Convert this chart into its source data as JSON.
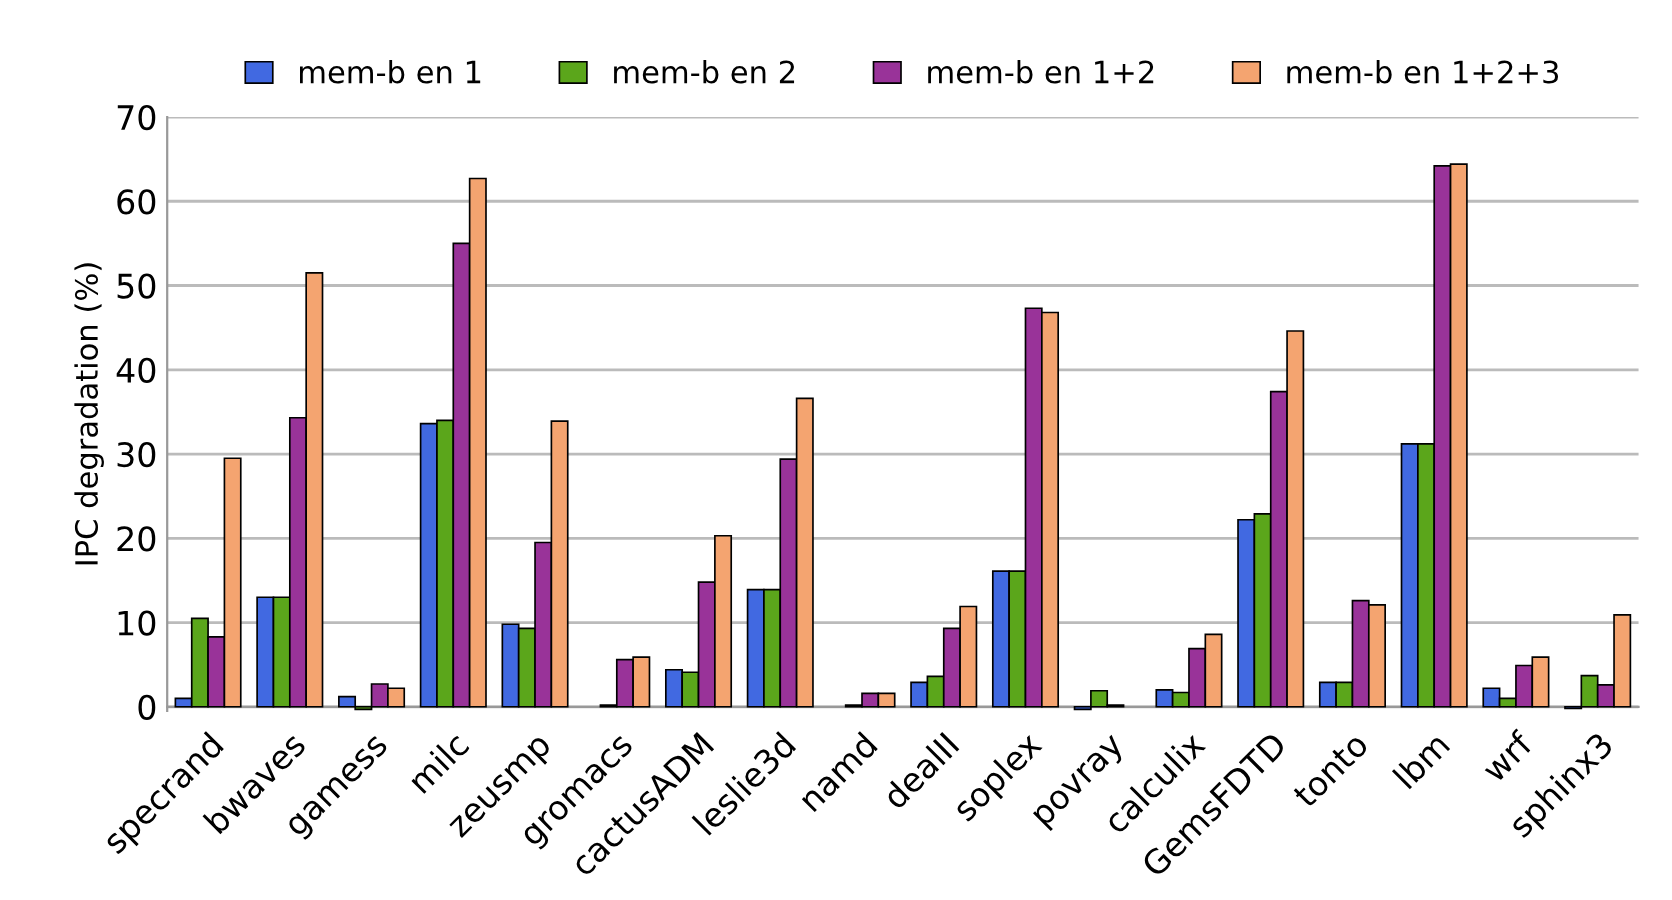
{
  "chart_data": {
    "type": "bar",
    "ylabel": "IPC degradation (%)",
    "categories": [
      "specrand",
      "bwaves",
      "gamess",
      "milc",
      "zeusmp",
      "gromacs",
      "cactusADM",
      "leslie3d",
      "namd",
      "dealII",
      "soplex",
      "povray",
      "calculix",
      "GemsFDTD",
      "tonto",
      "lbm",
      "wrf",
      "sphinx3"
    ],
    "series": [
      {
        "name": "mem-b en 1",
        "color": "#4169e1",
        "values": [
          1,
          13,
          1.2,
          33.6,
          9.8,
          null,
          4.4,
          13.9,
          null,
          2.9,
          16.1,
          -0.3,
          2.0,
          22.2,
          2.9,
          31.2,
          2.2,
          -0.2
        ]
      },
      {
        "name": "mem-b en 2",
        "color": "#5ba61b",
        "values": [
          10.5,
          13,
          -0.3,
          34,
          9.3,
          0.2,
          4.1,
          13.9,
          0.2,
          3.6,
          16.1,
          1.9,
          1.7,
          22.9,
          2.9,
          31.2,
          1.0,
          3.7
        ]
      },
      {
        "name": "mem-b en 1+2",
        "color": "#993399",
        "values": [
          8.3,
          34.3,
          2.7,
          55,
          19.5,
          5.6,
          14.8,
          29.4,
          1.6,
          9.3,
          47.3,
          0.2,
          6.9,
          37.4,
          12.6,
          64.2,
          4.9,
          2.6
        ]
      },
      {
        "name": "mem-b en 1+2+3",
        "color": "#f4a470",
        "values": [
          29.5,
          51.5,
          2.2,
          62.7,
          33.9,
          5.9,
          20.3,
          36.6,
          1.6,
          11.9,
          46.8,
          null,
          8.6,
          44.6,
          12.1,
          64.4,
          5.9,
          10.9
        ]
      }
    ],
    "ylim": [
      -0.5,
      70
    ],
    "yticks": [
      0,
      10,
      20,
      30,
      40,
      50,
      60,
      70
    ],
    "grid": "y",
    "legend": "top"
  }
}
